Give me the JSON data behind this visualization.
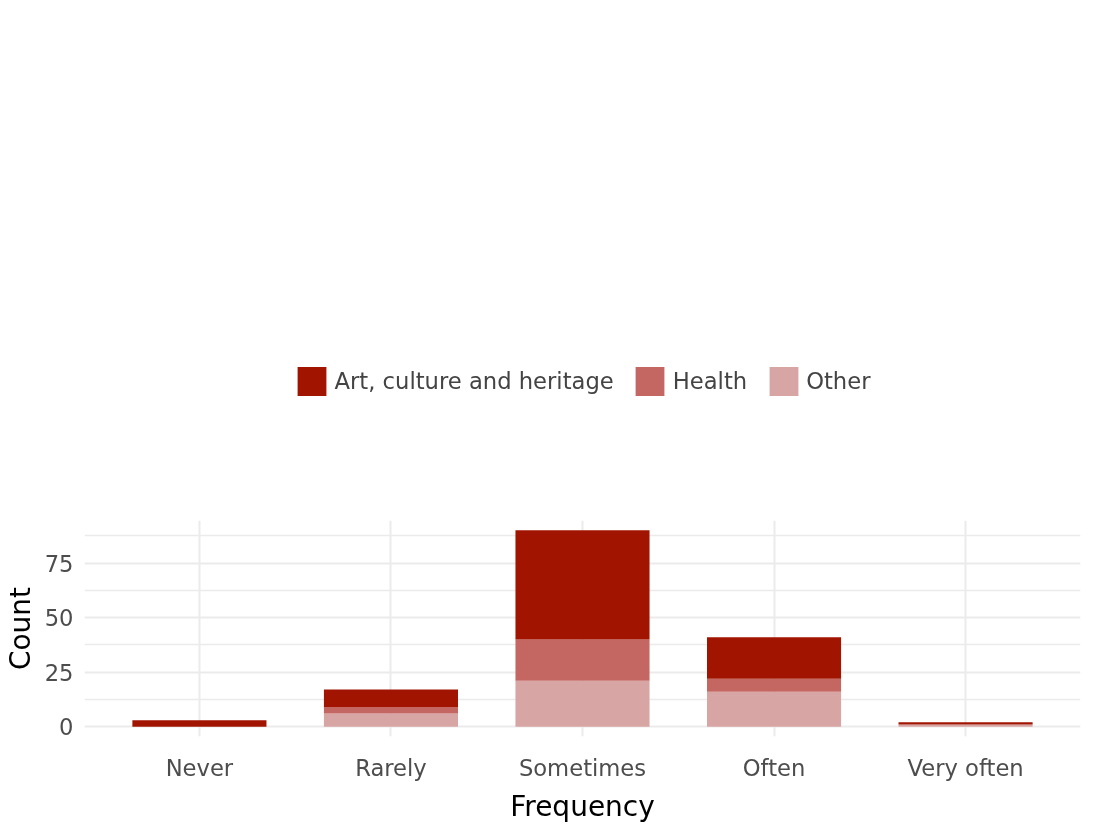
{
  "chart_data": {
    "type": "bar",
    "stacked": true,
    "xlabel": "Frequency",
    "ylabel": "Count",
    "categories": [
      "Never",
      "Rarely",
      "Sometimes",
      "Often",
      "Very often"
    ],
    "series": [
      {
        "name": "Other",
        "color": "#d8a5a5",
        "values": [
          0,
          6,
          21,
          16,
          1
        ]
      },
      {
        "name": "Health",
        "color": "#c46762",
        "values": [
          0,
          3,
          19,
          6,
          0
        ]
      },
      {
        "name": "Art, culture and heritage",
        "color": "#a01400",
        "values": [
          3,
          8,
          50,
          19,
          1
        ]
      }
    ],
    "ylim": [
      -4.5,
      94.5
    ],
    "yticks": [
      0,
      25,
      50,
      75
    ],
    "grid": true,
    "legend": "top"
  }
}
